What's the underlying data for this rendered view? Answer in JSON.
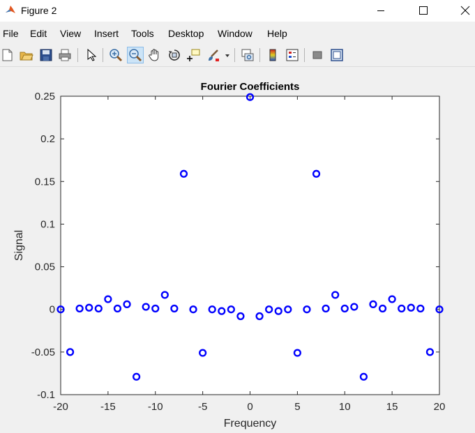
{
  "window": {
    "title": "Figure 2",
    "app_icon": "matlab-icon"
  },
  "menu": [
    "File",
    "Edit",
    "View",
    "Insert",
    "Tools",
    "Desktop",
    "Window",
    "Help"
  ],
  "toolbar": [
    "new-figure-icon",
    "open-file-icon",
    "save-icon",
    "print-icon",
    "edit-plot-arrow-icon",
    "zoom-in-icon",
    "zoom-out-icon",
    "pan-hand-icon",
    "rotate-3d-icon",
    "data-cursor-icon",
    "brush-icon",
    "link-plot-icon",
    "insert-colorbar-icon",
    "insert-legend-icon",
    "hide-plot-tools-icon",
    "show-plot-tools-icon"
  ],
  "colors": {
    "marker": "#0000ff"
  },
  "chart_data": {
    "type": "scatter",
    "title": "Fourier Coefficients",
    "xlabel": "Frequency",
    "ylabel": "Signal",
    "xlim": [
      -20,
      20
    ],
    "ylim": [
      -0.1,
      0.25
    ],
    "xticks": [
      -20,
      -15,
      -10,
      -5,
      0,
      5,
      10,
      15,
      20
    ],
    "xtick_labels": [
      "-20",
      "-15",
      "-10",
      "-5",
      "0",
      "5",
      "10",
      "15",
      "20"
    ],
    "yticks": [
      -0.1,
      -0.05,
      0,
      0.05,
      0.1,
      0.15,
      0.2,
      0.25
    ],
    "ytick_labels": [
      "-0.1",
      "-0.05",
      "0",
      "0.05",
      "0.1",
      "0.15",
      "0.2",
      "0.25"
    ],
    "grid": false,
    "x": [
      -20,
      -19,
      -18,
      -17,
      -16,
      -15,
      -14,
      -13,
      -12,
      -11,
      -10,
      -9,
      -8,
      -7,
      -6,
      -5,
      -4,
      -3,
      -2,
      -1,
      0,
      1,
      2,
      3,
      4,
      5,
      6,
      7,
      8,
      9,
      10,
      11,
      12,
      13,
      14,
      15,
      16,
      17,
      18,
      19,
      20
    ],
    "y": [
      0,
      -0.05,
      0.001,
      0.002,
      0.001,
      0.012,
      0.001,
      0.006,
      -0.079,
      0.003,
      0.001,
      0.017,
      0.001,
      0.159,
      0,
      -0.051,
      0,
      -0.002,
      0,
      -0.008,
      0.249,
      -0.008,
      0,
      -0.002,
      0,
      -0.051,
      0,
      0.159,
      0.001,
      0.017,
      0.001,
      0.003,
      -0.079,
      0.006,
      0.001,
      0.012,
      0.001,
      0.002,
      0.001,
      -0.05,
      0
    ]
  }
}
